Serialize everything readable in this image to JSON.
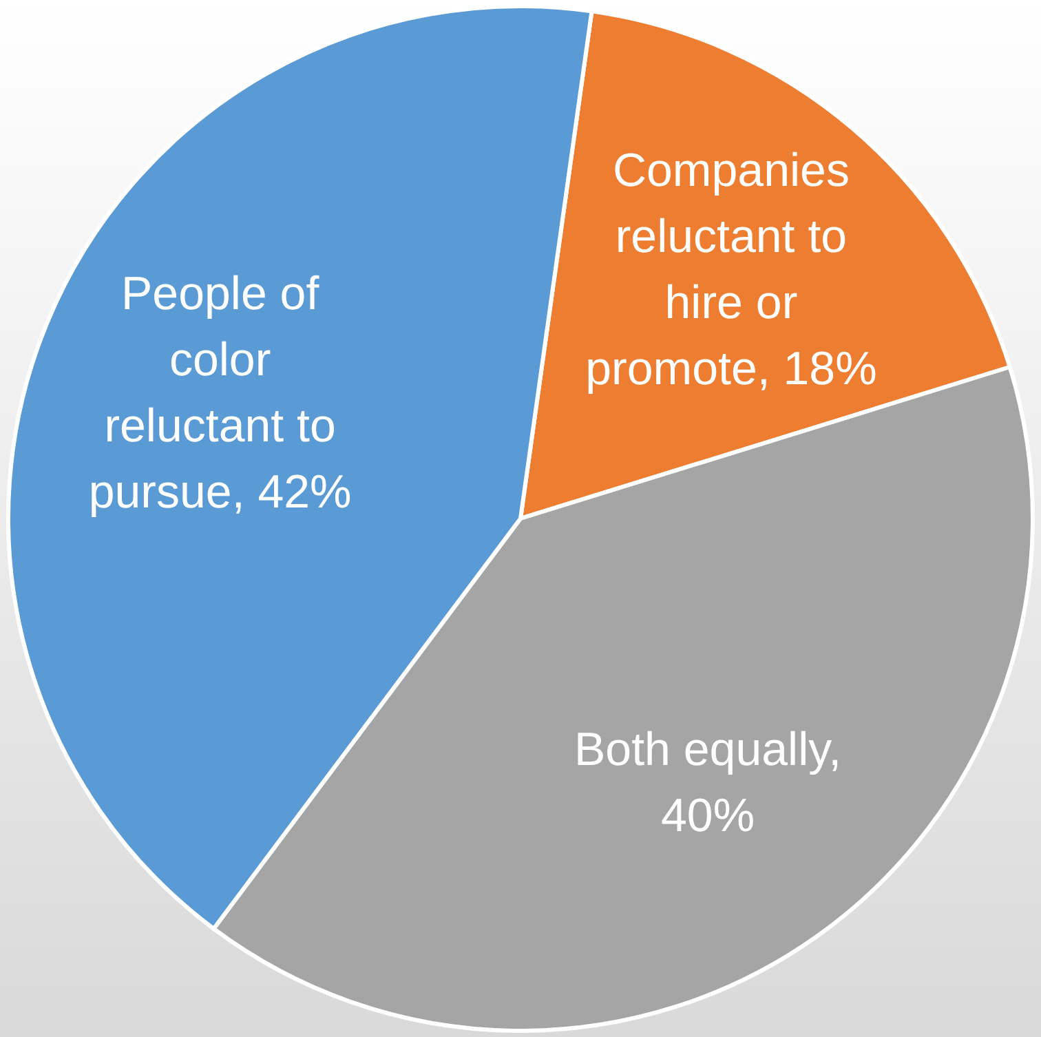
{
  "chart_data": {
    "type": "pie",
    "categories": [
      "Companies reluctant to hire or promote, 18%",
      "Both equally, 40%",
      "People of color reluctant to pursue, 42%"
    ],
    "values": [
      18,
      40,
      42
    ],
    "colors": [
      "#ed7d31",
      "#a5a5a5",
      "#5b9bd5"
    ]
  }
}
